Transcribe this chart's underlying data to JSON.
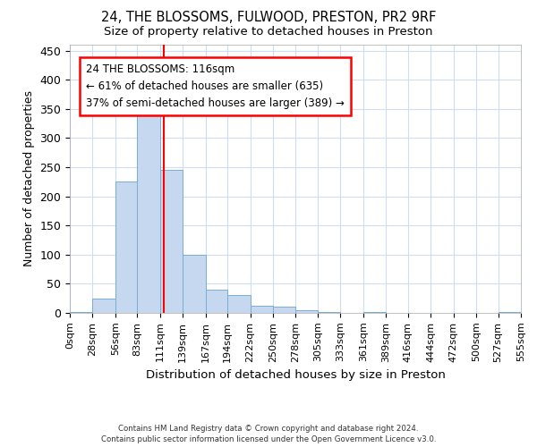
{
  "title1": "24, THE BLOSSOMS, FULWOOD, PRESTON, PR2 9RF",
  "title2": "Size of property relative to detached houses in Preston",
  "xlabel": "Distribution of detached houses by size in Preston",
  "ylabel": "Number of detached properties",
  "bar_heights": [
    2,
    25,
    225,
    345,
    245,
    100,
    40,
    30,
    13,
    10,
    5,
    1,
    0,
    2,
    0,
    0,
    0,
    0,
    0,
    2
  ],
  "bar_color": "#c5d8f0",
  "bar_edge_color": "#7aadd4",
  "x_labels": [
    "0sqm",
    "28sqm",
    "56sqm",
    "83sqm",
    "111sqm",
    "139sqm",
    "167sqm",
    "194sqm",
    "222sqm",
    "250sqm",
    "278sqm",
    "305sqm",
    "333sqm",
    "361sqm",
    "389sqm",
    "416sqm",
    "444sqm",
    "472sqm",
    "500sqm",
    "527sqm",
    "555sqm"
  ],
  "bin_edges": [
    0,
    28,
    56,
    83,
    111,
    139,
    167,
    194,
    222,
    250,
    278,
    305,
    333,
    361,
    389,
    416,
    444,
    472,
    500,
    527,
    555
  ],
  "ylim": [
    0,
    460
  ],
  "yticks": [
    0,
    50,
    100,
    150,
    200,
    250,
    300,
    350,
    400,
    450
  ],
  "property_line_x": 116,
  "annotation_line1": "24 THE BLOSSOMS: 116sqm",
  "annotation_line2": "← 61% of detached houses are smaller (635)",
  "annotation_line3": "37% of semi-detached houses are larger (389) →",
  "annotation_box_color": "white",
  "annotation_box_edge_color": "red",
  "vline_color": "red",
  "grid_color": "#d0dcf0",
  "background_color": "white",
  "footnote": "Contains HM Land Registry data © Crown copyright and database right 2024.\nContains public sector information licensed under the Open Government Licence v3.0."
}
